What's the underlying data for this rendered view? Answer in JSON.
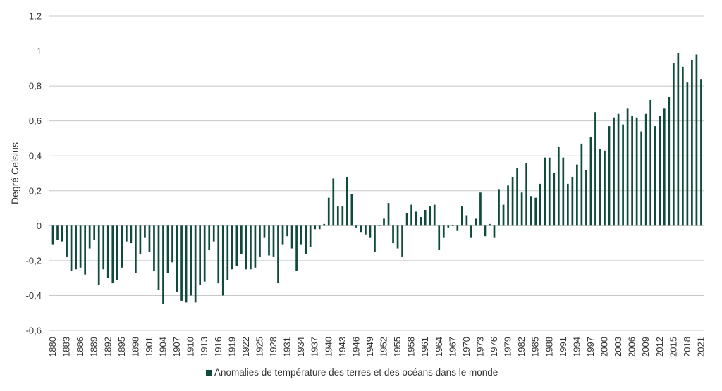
{
  "chart_data": {
    "type": "bar",
    "xlabel": "",
    "ylabel": "Degré Celsius",
    "ylim": [
      -0.6,
      1.2
    ],
    "yticks": [
      "1,2",
      "1",
      "0,8",
      "0,6",
      "0,4",
      "0,2",
      "0",
      "-0,2",
      "-0,4",
      "-0,6"
    ],
    "ytick_values": [
      1.2,
      1.0,
      0.8,
      0.6,
      0.4,
      0.2,
      0.0,
      -0.2,
      -0.4,
      -0.6
    ],
    "grid": true,
    "legend_position": "bottom",
    "color": "#0f4a3c",
    "x_start": 1880,
    "x_end": 2021,
    "xtick_every": 3,
    "series": [
      {
        "name": "Anomalies de température des terres et des océans dans le monde",
        "values": [
          -0.11,
          -0.08,
          -0.09,
          -0.18,
          -0.26,
          -0.25,
          -0.24,
          -0.28,
          -0.13,
          -0.08,
          -0.34,
          -0.25,
          -0.3,
          -0.33,
          -0.31,
          -0.24,
          -0.09,
          -0.1,
          -0.27,
          -0.16,
          -0.07,
          -0.15,
          -0.26,
          -0.37,
          -0.45,
          -0.27,
          -0.21,
          -0.38,
          -0.43,
          -0.44,
          -0.4,
          -0.44,
          -0.34,
          -0.32,
          -0.14,
          -0.09,
          -0.33,
          -0.4,
          -0.31,
          -0.25,
          -0.23,
          -0.16,
          -0.25,
          -0.25,
          -0.24,
          -0.18,
          -0.07,
          -0.17,
          -0.18,
          -0.33,
          -0.11,
          -0.06,
          -0.13,
          -0.26,
          -0.11,
          -0.16,
          -0.12,
          -0.02,
          -0.02,
          0.01,
          0.16,
          0.27,
          0.11,
          0.11,
          0.28,
          0.18,
          -0.01,
          -0.04,
          -0.05,
          -0.07,
          -0.15,
          0.0,
          0.04,
          0.13,
          -0.1,
          -0.13,
          -0.18,
          0.07,
          0.12,
          0.08,
          0.05,
          0.09,
          0.11,
          0.12,
          -0.14,
          -0.07,
          -0.01,
          0.0,
          -0.03,
          0.11,
          0.06,
          -0.07,
          0.04,
          0.19,
          -0.06,
          0.01,
          -0.07,
          0.21,
          0.12,
          0.23,
          0.28,
          0.33,
          0.19,
          0.36,
          0.17,
          0.16,
          0.24,
          0.39,
          0.39,
          0.3,
          0.45,
          0.39,
          0.24,
          0.28,
          0.35,
          0.47,
          0.32,
          0.51,
          0.65,
          0.44,
          0.43,
          0.57,
          0.62,
          0.64,
          0.58,
          0.67,
          0.63,
          0.62,
          0.54,
          0.64,
          0.72,
          0.57,
          0.63,
          0.67,
          0.74,
          0.93,
          0.99,
          0.91,
          0.82,
          0.95,
          0.98,
          0.84
        ]
      }
    ]
  }
}
